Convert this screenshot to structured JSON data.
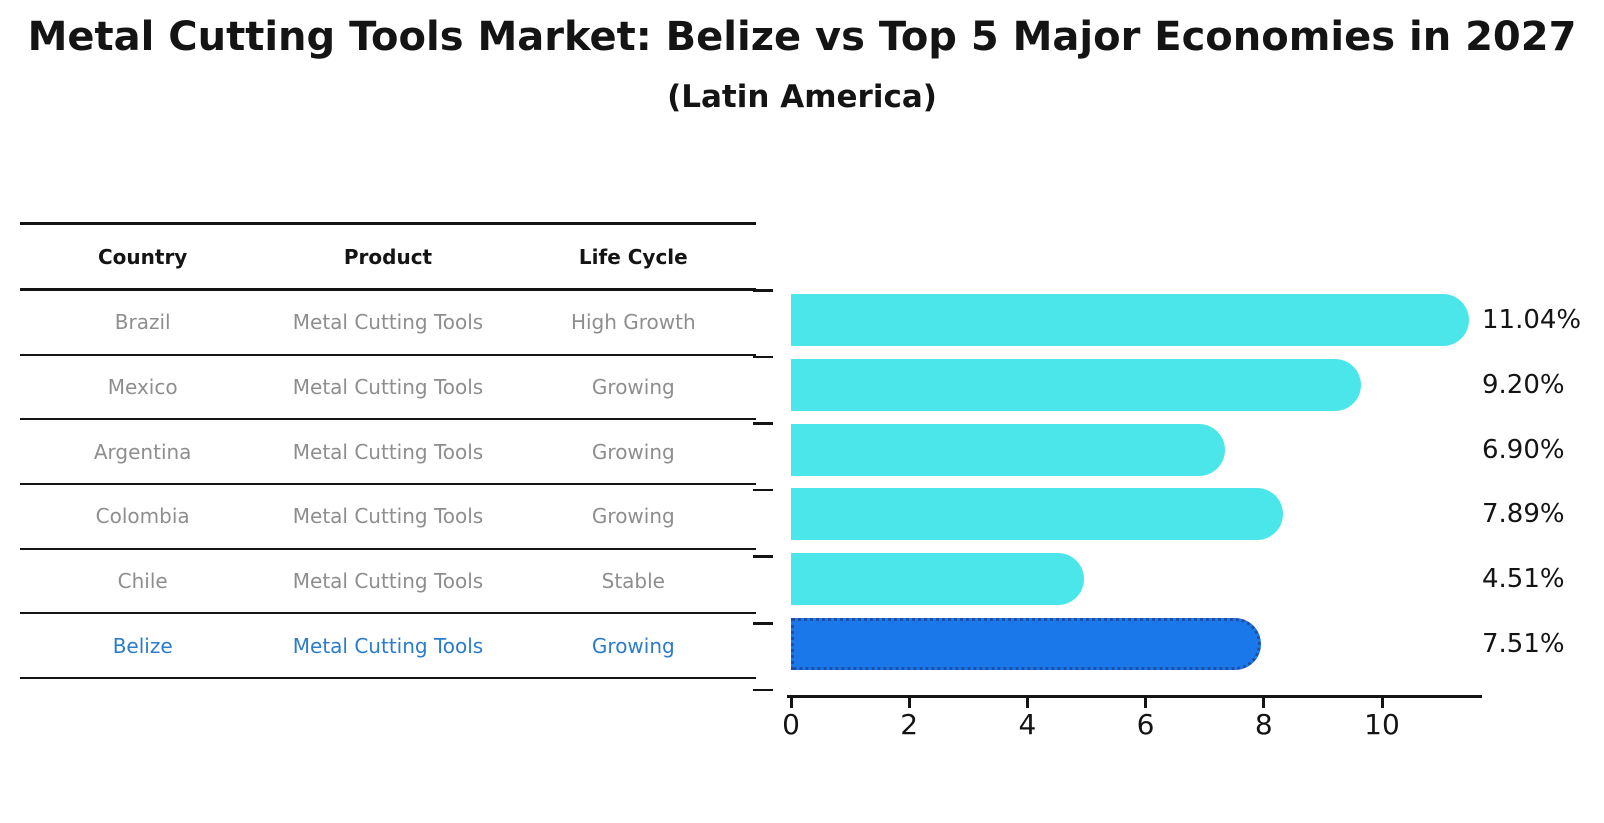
{
  "chart_data": {
    "type": "bar",
    "orientation": "horizontal",
    "title": "Metal Cutting Tools Market: Belize vs Top 5 Major Economies in 2027",
    "subtitle": "(Latin America)",
    "categories": [
      "Brazil",
      "Mexico",
      "Argentina",
      "Colombia",
      "Chile",
      "Belize"
    ],
    "values": [
      11.04,
      9.2,
      6.9,
      7.89,
      4.51,
      7.51
    ],
    "value_labels": [
      "11.04%",
      "9.20%",
      "6.90%",
      "7.89%",
      "4.51%",
      "7.51%"
    ],
    "highlight_index": 5,
    "x_ticks": [
      0,
      2,
      4,
      6,
      8,
      10
    ],
    "x_tick_labels": [
      "0",
      "2",
      "4",
      "6",
      "8",
      "10"
    ],
    "xlim": [
      0,
      11.7
    ],
    "grid": false,
    "legend": null,
    "bar_colors": {
      "default": "#4BE6EA",
      "highlight": "#1B78EA",
      "highlight_border": "#1D4FA8"
    }
  },
  "table": {
    "columns": [
      "Country",
      "Product",
      "Life Cycle"
    ],
    "rows": [
      {
        "country": "Brazil",
        "product": "Metal Cutting Tools",
        "life_cycle": "High Growth",
        "highlight": false
      },
      {
        "country": "Mexico",
        "product": "Metal Cutting Tools",
        "life_cycle": "Growing",
        "highlight": false
      },
      {
        "country": "Argentina",
        "product": "Metal Cutting Tools",
        "life_cycle": "Growing",
        "highlight": false
      },
      {
        "country": "Colombia",
        "product": "Metal Cutting Tools",
        "life_cycle": "Growing",
        "highlight": false
      },
      {
        "country": "Chile",
        "product": "Metal Cutting Tools",
        "life_cycle": "Stable",
        "highlight": false
      },
      {
        "country": "Belize",
        "product": "Metal Cutting Tools",
        "life_cycle": "Growing",
        "highlight": true
      }
    ]
  },
  "colors": {
    "text_default": "#141414",
    "row_text": "#8E8E8E",
    "highlight_row_text": "#2B7CCC"
  }
}
